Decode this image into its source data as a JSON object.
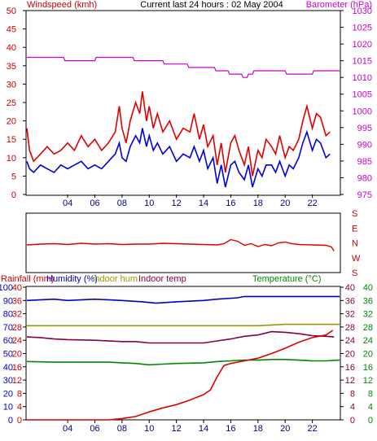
{
  "chart_data": [
    {
      "type": "line",
      "panel": "wind-barometer",
      "title": "Current last 24 hours : 02 May 2004",
      "left_axis_label": "Windspeed (kmh)",
      "right_axis_label": "Barometer (hPa)",
      "y_left": {
        "min": 0,
        "max": 50,
        "ticks": [
          0,
          5,
          10,
          15,
          20,
          25,
          30,
          35,
          40,
          45,
          50
        ]
      },
      "y_right": {
        "min": 975,
        "max": 1030,
        "ticks": [
          975,
          980,
          985,
          990,
          995,
          1000,
          1005,
          1010,
          1015,
          1020,
          1025,
          1030
        ]
      },
      "x": {
        "min": 1.0,
        "max": 24.0,
        "ticks": [
          "04",
          "06",
          "08",
          "10",
          "12",
          "14",
          "16",
          "18",
          "20",
          "22"
        ],
        "tick_hours": [
          4,
          6,
          8,
          10,
          12,
          14,
          16,
          18,
          20,
          22
        ]
      },
      "grid": false,
      "series": [
        {
          "color": "#e00000",
          "axis": "left",
          "x": [
            1.0,
            1.2,
            1.5,
            2.0,
            2.5,
            3.0,
            3.5,
            4.0,
            4.5,
            5.0,
            5.5,
            6.0,
            6.5,
            7.0,
            7.5,
            7.8,
            8.0,
            8.3,
            8.6,
            9.0,
            9.3,
            9.5,
            9.8,
            10.0,
            10.3,
            10.6,
            11.0,
            11.5,
            12.0,
            12.5,
            13.0,
            13.3,
            13.7,
            14.0,
            14.3,
            14.7,
            15.0,
            15.3,
            15.6,
            16.0,
            16.3,
            16.6,
            17.0,
            17.3,
            17.6,
            18.0,
            18.3,
            18.6,
            19.0,
            19.3,
            19.6,
            20.0,
            20.3,
            20.6,
            21.0,
            21.3,
            21.6,
            22.0,
            22.3,
            22.6,
            23.0,
            23.3
          ],
          "values": [
            18,
            12,
            9,
            11,
            13,
            11,
            12,
            14,
            12,
            16,
            13,
            15,
            12,
            14,
            17,
            24,
            18,
            14,
            20,
            25,
            22,
            28,
            20,
            24,
            18,
            22,
            17,
            20,
            15,
            18,
            17,
            22,
            15,
            19,
            13,
            16,
            8,
            14,
            6,
            14,
            16,
            12,
            8,
            13,
            5,
            12,
            10,
            15,
            13,
            11,
            16,
            10,
            13,
            12,
            15,
            20,
            24,
            18,
            22,
            21,
            16,
            17
          ]
        },
        {
          "color": "#0000e0",
          "axis": "left",
          "x": [
            1.0,
            1.2,
            1.5,
            2.0,
            2.5,
            3.0,
            3.5,
            4.0,
            4.5,
            5.0,
            5.5,
            6.0,
            6.5,
            7.0,
            7.5,
            7.8,
            8.0,
            8.3,
            8.6,
            9.0,
            9.3,
            9.5,
            9.8,
            10.0,
            10.3,
            10.6,
            11.0,
            11.5,
            12.0,
            12.5,
            13.0,
            13.3,
            13.7,
            14.0,
            14.3,
            14.7,
            15.0,
            15.3,
            15.6,
            16.0,
            16.3,
            16.6,
            17.0,
            17.3,
            17.6,
            18.0,
            18.3,
            18.6,
            19.0,
            19.3,
            19.6,
            20.0,
            20.3,
            20.6,
            21.0,
            21.3,
            21.6,
            22.0,
            22.3,
            22.6,
            23.0,
            23.3
          ],
          "values": [
            9,
            7,
            6,
            8,
            7,
            6,
            8,
            7,
            8,
            9,
            7,
            8,
            7,
            9,
            11,
            14,
            10,
            9,
            13,
            16,
            14,
            18,
            13,
            16,
            12,
            14,
            11,
            13,
            9,
            11,
            10,
            13,
            9,
            12,
            7,
            10,
            3,
            8,
            2,
            8,
            9,
            6,
            4,
            8,
            2,
            7,
            5,
            8,
            8,
            6,
            9,
            5,
            8,
            7,
            10,
            14,
            17,
            12,
            15,
            14,
            10,
            11
          ]
        },
        {
          "color": "#cc00cc",
          "axis": "right",
          "x": [
            1.0,
            3.7,
            3.8,
            6.0,
            6.1,
            8.8,
            8.9,
            11.0,
            11.1,
            12.8,
            12.9,
            14.8,
            14.9,
            15.8,
            15.9,
            16.8,
            16.9,
            17.2,
            17.3,
            17.6,
            17.7,
            20.0,
            20.1,
            22.0,
            22.1,
            24.0
          ],
          "values": [
            1016,
            1016,
            1015,
            1015,
            1016,
            1016,
            1015,
            1015,
            1014,
            1014,
            1013,
            1013,
            1012,
            1012,
            1011,
            1011,
            1010,
            1010,
            1011,
            1011,
            1012,
            1012,
            1011,
            1011,
            1012,
            1012
          ]
        }
      ]
    },
    {
      "type": "line",
      "panel": "wind-direction",
      "right_axis_ticks": [
        "S",
        "E",
        "N",
        "W",
        "S"
      ],
      "x": {
        "min": 1.0,
        "max": 24.0
      },
      "grid": false,
      "series": [
        {
          "color": "#e00000",
          "x": [
            1.0,
            2.0,
            3.0,
            4.0,
            5.0,
            6.0,
            7.0,
            8.0,
            9.0,
            10.0,
            11.0,
            12.0,
            13.0,
            14.0,
            15.0,
            15.5,
            16.0,
            16.5,
            17.0,
            17.5,
            18.0,
            18.5,
            19.0,
            19.5,
            20.0,
            20.5,
            21.0,
            22.0,
            23.0,
            23.4,
            23.6
          ],
          "values": [
            -5,
            -3,
            -2,
            -4,
            -1,
            -3,
            -2,
            -4,
            -3,
            -3,
            -1,
            -2,
            -3,
            -4,
            -5,
            -2,
            8,
            4,
            -6,
            -2,
            -9,
            -4,
            -7,
            0,
            2,
            -2,
            -4,
            -5,
            -6,
            -10,
            -20
          ]
        }
      ]
    },
    {
      "type": "line",
      "panel": "rain-humidity-temperature",
      "labels": [
        "Rainfall (mm)",
        "Humidity (%)",
        "indoor hum",
        "Indoor temp",
        "Temperature (°C)"
      ],
      "y_left_percent": {
        "min": 0,
        "max": 100,
        "ticks": [
          0,
          10,
          20,
          30,
          40,
          50,
          60,
          70,
          80,
          90,
          100
        ]
      },
      "y_left_rain": {
        "min": 0,
        "max": 40,
        "ticks": [
          0,
          4,
          8,
          12,
          16,
          20,
          24,
          28,
          32,
          36,
          40
        ]
      },
      "y_right_temp": {
        "min": 0,
        "max": 40,
        "ticks": [
          0,
          4,
          8,
          12,
          16,
          20,
          24,
          28,
          32,
          36,
          40
        ]
      },
      "x": {
        "min": 1.0,
        "max": 24.0,
        "ticks": [
          "04",
          "06",
          "08",
          "10",
          "12",
          "14",
          "16",
          "18",
          "20",
          "22"
        ],
        "tick_hours": [
          4,
          6,
          8,
          10,
          12,
          14,
          16,
          18,
          20,
          22
        ]
      },
      "grid": false,
      "series": [
        {
          "name": "Humidity (%)",
          "color": "#0000cc",
          "axis": "percent",
          "x": [
            1.0,
            3.0,
            4.0,
            6.0,
            8.0,
            9.5,
            10.5,
            12.0,
            14.0,
            15.0,
            16.5,
            17.0,
            19.0,
            21.0,
            23.0,
            24.0
          ],
          "values": [
            90,
            91,
            90,
            91,
            90,
            89,
            88,
            89,
            90,
            91,
            92,
            93,
            93,
            93,
            93,
            93
          ]
        },
        {
          "name": "indoor hum",
          "color": "#999900",
          "axis": "percent",
          "x": [
            1.0,
            6.0,
            10.0,
            14.0,
            16.0,
            18.0,
            20.0,
            22.0,
            24.0
          ],
          "values": [
            71,
            71,
            71,
            71,
            71,
            71,
            72,
            72,
            72
          ]
        },
        {
          "name": "Indoor temp",
          "color": "#880044",
          "axis": "temp",
          "x": [
            1.0,
            2.0,
            3.0,
            4.0,
            6.0,
            8.0,
            9.0,
            10.0,
            12.0,
            14.0,
            15.0,
            16.0,
            17.0,
            18.0,
            19.0,
            20.0,
            21.0,
            22.0,
            23.0,
            23.6
          ],
          "values": [
            25.0,
            24.8,
            24.4,
            24.2,
            24.0,
            23.6,
            23.6,
            23.2,
            23.2,
            23.2,
            23.8,
            24.4,
            25.2,
            25.6,
            26.6,
            26.4,
            26.0,
            25.4,
            25.2,
            25.0
          ]
        },
        {
          "name": "Temperature (°C)",
          "color": "#008800",
          "axis": "temp",
          "x": [
            1.0,
            3.0,
            5.0,
            7.0,
            8.0,
            9.0,
            10.0,
            11.0,
            12.0,
            14.0,
            15.0,
            16.0,
            17.0,
            18.0,
            19.0,
            20.0,
            21.0,
            22.0,
            23.0,
            24.0
          ],
          "values": [
            17.6,
            17.4,
            17.4,
            17.4,
            17.2,
            17.0,
            16.6,
            16.8,
            17.0,
            17.2,
            17.6,
            17.8,
            18.0,
            18.0,
            18.2,
            18.2,
            18.0,
            17.8,
            17.8,
            18.0
          ]
        },
        {
          "name": "Rainfall (mm)",
          "color": "#e00000",
          "axis": "rain",
          "x": [
            1.0,
            7.0,
            8.0,
            9.0,
            10.0,
            11.0,
            12.0,
            13.0,
            14.0,
            14.5,
            15.0,
            15.5,
            16.0,
            17.0,
            18.0,
            19.0,
            20.0,
            21.0,
            22.0,
            23.0,
            23.5
          ],
          "values": [
            0,
            0,
            0.4,
            1.0,
            2.4,
            3.6,
            4.6,
            6.0,
            7.6,
            9.0,
            13.0,
            16.4,
            17.0,
            17.8,
            18.6,
            20.0,
            21.6,
            23.4,
            24.8,
            25.6,
            27.0
          ]
        }
      ]
    }
  ]
}
